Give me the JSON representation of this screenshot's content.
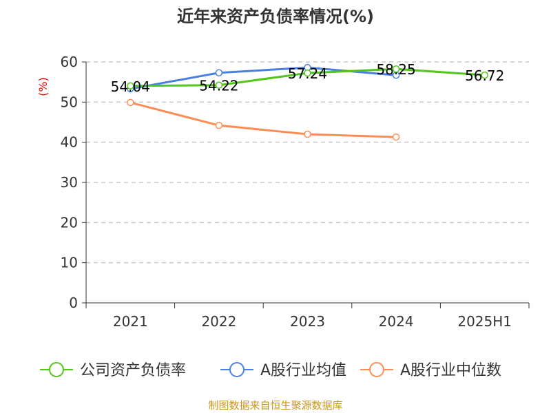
{
  "chart_data": {
    "type": "line",
    "title": "近年来资产负债率情况(%)",
    "ylabel": "(%)",
    "xlabel": "",
    "categories": [
      "2021",
      "2022",
      "2023",
      "2024",
      "2025H1"
    ],
    "ylim": [
      0,
      60
    ],
    "yticks": [
      0,
      10,
      20,
      30,
      40,
      50,
      60
    ],
    "grid": true,
    "legend_position": "bottom",
    "series": [
      {
        "name": "公司资产负债率",
        "color": "#52c41a",
        "values": [
          54.04,
          54.22,
          57.24,
          58.25,
          56.72
        ],
        "labels": [
          "54.04",
          "54.22",
          "57.24",
          "58.25",
          "56.72"
        ]
      },
      {
        "name": "A股行业均值",
        "color": "#4a7fe0",
        "values": [
          53.3,
          57.3,
          58.6,
          56.7,
          null
        ]
      },
      {
        "name": "A股行业中位数",
        "color": "#ff8c55",
        "values": [
          49.9,
          44.2,
          42.0,
          41.3,
          null
        ]
      }
    ],
    "source": "制图数据来自恒生聚源数据库"
  }
}
